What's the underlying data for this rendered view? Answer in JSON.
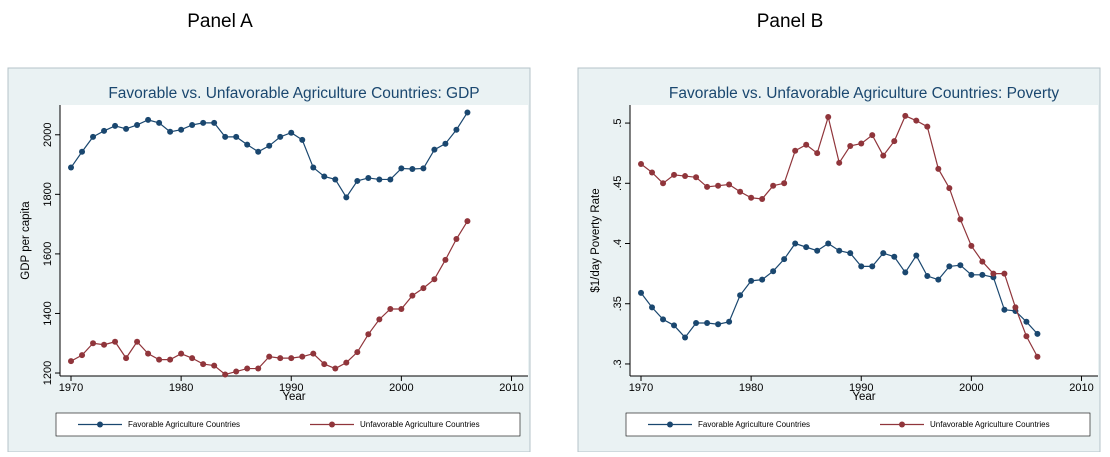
{
  "chart_data": [
    {
      "type": "line",
      "panel_label": "Panel A",
      "title": "Favorable vs. Unfavorable Agriculture Countries: GDP",
      "xlabel": "Year",
      "ylabel": "GDP per capita",
      "x": [
        1970,
        1971,
        1972,
        1973,
        1974,
        1975,
        1976,
        1977,
        1978,
        1979,
        1980,
        1981,
        1982,
        1983,
        1984,
        1985,
        1986,
        1987,
        1988,
        1989,
        1990,
        1991,
        1992,
        1993,
        1994,
        1995,
        1996,
        1997,
        1998,
        1999,
        2000,
        2001,
        2002,
        2003,
        2004,
        2005,
        2006
      ],
      "series": [
        {
          "name": "Favorable Agriculture Countries",
          "color": "#1a476f",
          "values": [
            1890,
            1943,
            1993,
            2013,
            2030,
            2020,
            2033,
            2050,
            2040,
            2010,
            2017,
            2033,
            2040,
            2040,
            1993,
            1993,
            1967,
            1943,
            1963,
            1993,
            2007,
            1983,
            1890,
            1860,
            1850,
            1790,
            1845,
            1855,
            1850,
            1850,
            1887,
            1885,
            1887,
            1950,
            1970,
            2017,
            2075
          ]
        },
        {
          "name": "Unfavorable Agriculture Countries",
          "color": "#90353b",
          "values": [
            1240,
            1260,
            1300,
            1295,
            1305,
            1250,
            1305,
            1265,
            1245,
            1245,
            1265,
            1250,
            1230,
            1225,
            1195,
            1205,
            1215,
            1215,
            1255,
            1250,
            1250,
            1255,
            1265,
            1230,
            1215,
            1235,
            1270,
            1330,
            1380,
            1415,
            1415,
            1460,
            1485,
            1515,
            1580,
            1650,
            1710
          ]
        }
      ],
      "xlim": [
        1969,
        2011.5
      ],
      "xticks": [
        1970,
        1980,
        1990,
        2000,
        2010
      ],
      "ylim": [
        1190,
        2100
      ],
      "yticks": [
        1200,
        1400,
        1600,
        1800,
        2000
      ],
      "legend": "bottom"
    },
    {
      "type": "line",
      "panel_label": "Panel B",
      "title": "Favorable vs. Unfavorable Agriculture Countries: Poverty",
      "xlabel": "Year",
      "ylabel": "$1/day Poverty Rate",
      "x": [
        1970,
        1971,
        1972,
        1973,
        1974,
        1975,
        1976,
        1977,
        1978,
        1979,
        1980,
        1981,
        1982,
        1983,
        1984,
        1985,
        1986,
        1987,
        1988,
        1989,
        1990,
        1991,
        1992,
        1993,
        1994,
        1995,
        1996,
        1997,
        1998,
        1999,
        2000,
        2001,
        2002,
        2003,
        2004,
        2005,
        2006
      ],
      "series": [
        {
          "name": "Favorable Agriculture Countries",
          "color": "#1a476f",
          "values": [
            0.359,
            0.347,
            0.337,
            0.332,
            0.322,
            0.334,
            0.334,
            0.333,
            0.335,
            0.357,
            0.369,
            0.37,
            0.377,
            0.387,
            0.4,
            0.397,
            0.394,
            0.4,
            0.394,
            0.392,
            0.381,
            0.381,
            0.392,
            0.389,
            0.376,
            0.39,
            0.373,
            0.37,
            0.381,
            0.382,
            0.374,
            0.374,
            0.372,
            0.345,
            0.344,
            0.335,
            0.325
          ]
        },
        {
          "name": "Unfavorable Agriculture Countries",
          "color": "#90353b",
          "values": [
            0.466,
            0.459,
            0.45,
            0.457,
            0.456,
            0.455,
            0.447,
            0.448,
            0.449,
            0.443,
            0.438,
            0.437,
            0.448,
            0.45,
            0.477,
            0.482,
            0.475,
            0.505,
            0.467,
            0.481,
            0.483,
            0.49,
            0.473,
            0.485,
            0.506,
            0.502,
            0.497,
            0.462,
            0.446,
            0.42,
            0.398,
            0.385,
            0.375,
            0.375,
            0.347,
            0.323,
            0.306
          ]
        }
      ],
      "xlim": [
        1969,
        2011.5
      ],
      "xticks": [
        1970,
        1980,
        1990,
        2000,
        2010
      ],
      "ylim": [
        0.29,
        0.515
      ],
      "yticks": [
        {
          "value": 0.3,
          "label": ".3"
        },
        {
          "value": 0.35,
          "label": ".35"
        },
        {
          "value": 0.4,
          "label": ".4"
        },
        {
          "value": 0.45,
          "label": ".45"
        },
        {
          "value": 0.5,
          "label": ".5"
        }
      ],
      "legend": "bottom"
    }
  ]
}
